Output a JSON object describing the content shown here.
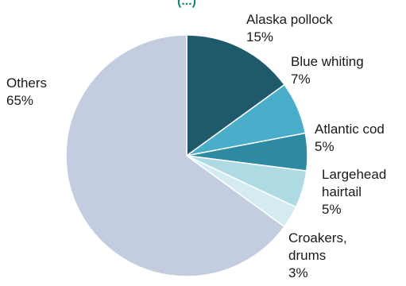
{
  "chart_data": {
    "type": "pie",
    "title": "(...)",
    "slices": [
      {
        "label": [
          "Alaska pollock"
        ],
        "value": 15,
        "value_label": "15%",
        "color": "#1f5a6b"
      },
      {
        "label": [
          "Blue whiting"
        ],
        "value": 7,
        "value_label": "7%",
        "color": "#4aaecb"
      },
      {
        "label": [
          "Atlantic cod"
        ],
        "value": 5,
        "value_label": "5%",
        "color": "#2e8aa3"
      },
      {
        "label": [
          "Largehead",
          "hairtail"
        ],
        "value": 5,
        "value_label": "5%",
        "color": "#aedbe3"
      },
      {
        "label": [
          "Croakers,",
          "drums"
        ],
        "value": 3,
        "value_label": "3%",
        "color": "#d4ecf1"
      },
      {
        "label": [
          "Others"
        ],
        "value": 65,
        "value_label": "65%",
        "color": "#c4cde0"
      }
    ]
  }
}
